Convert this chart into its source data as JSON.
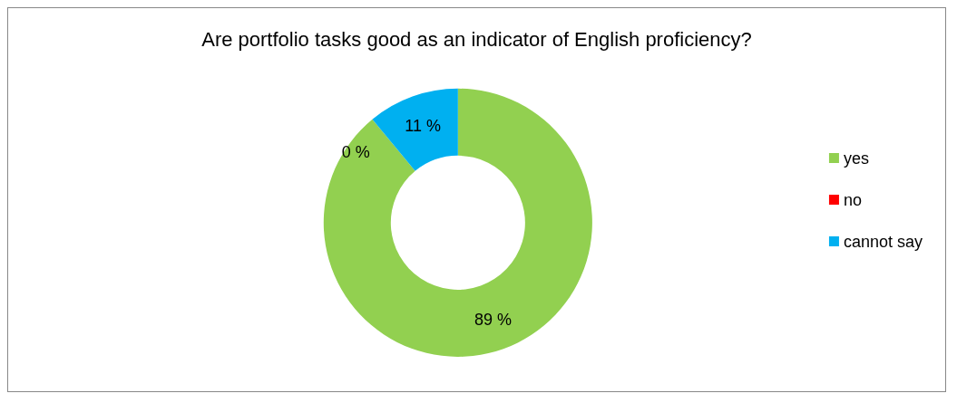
{
  "chart_data": {
    "type": "donut",
    "title": "Are portfolio tasks good as an indicator of English proficiency?",
    "categories": [
      "yes",
      "no",
      "cannot say"
    ],
    "values": [
      89,
      0,
      11
    ],
    "colors": [
      "#92d050",
      "#ff0000",
      "#00b0f0"
    ],
    "value_labels": [
      "89 %",
      "0 %",
      "11 %"
    ],
    "legend": "right"
  }
}
